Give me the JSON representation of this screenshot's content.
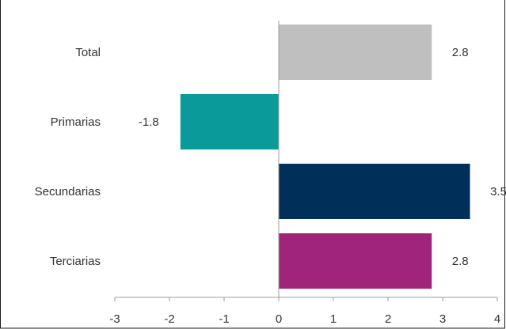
{
  "chart_data": {
    "type": "bar",
    "orientation": "horizontal",
    "categories": [
      "Total",
      "Primarias",
      "Secundarias",
      "Terciarias"
    ],
    "values": [
      2.8,
      -1.8,
      3.5,
      2.8
    ],
    "data_labels": [
      "2.8",
      "-1.8",
      "3.5",
      "2.8"
    ],
    "colors": [
      "#bfbfbf",
      "#0a9a99",
      "#00305a",
      "#a0257a"
    ],
    "xlim": [
      -3,
      4
    ],
    "x_ticks": [
      -3,
      -2,
      -1,
      0,
      1,
      2,
      3,
      4
    ],
    "x_tick_labels": [
      "-3",
      "-2",
      "-1",
      "0",
      "1",
      "2",
      "3",
      "4"
    ],
    "grid": false,
    "legend": "none"
  }
}
